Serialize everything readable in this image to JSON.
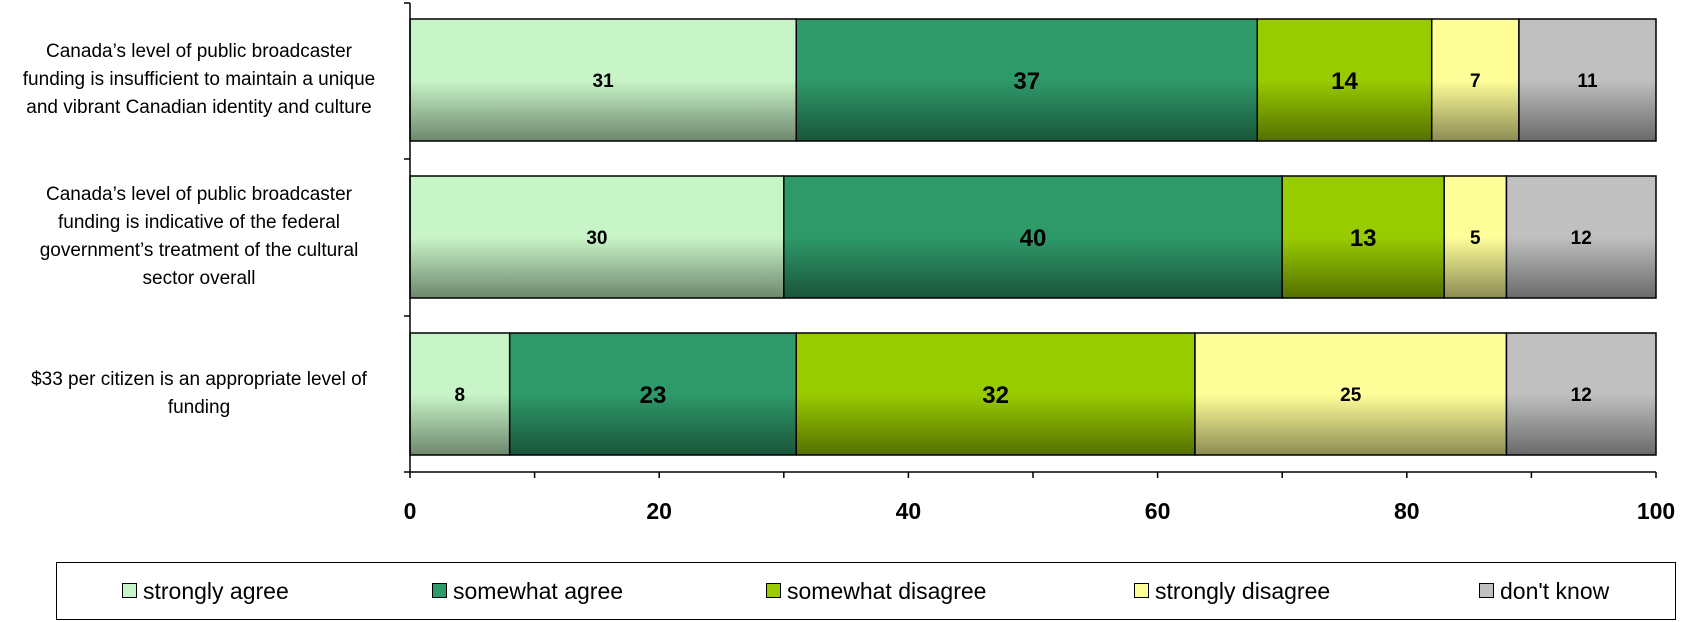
{
  "chart_data": {
    "type": "bar",
    "orientation": "horizontal",
    "stacked": true,
    "categories": [
      "Canada’s level of public broadcaster funding is insufficient to maintain a unique and vibrant Canadian identity and culture",
      "Canada’s level of public broadcaster funding is indicative of the federal government’s treatment of the cultural sector overall",
      "$33 per citizen is an appropriate level of funding"
    ],
    "category_lines": [
      [
        "Canada’s level of public broadcaster",
        "funding is insufficient to maintain a unique",
        "and vibrant Canadian identity and culture"
      ],
      [
        "Canada’s level of public broadcaster",
        "funding is indicative of the federal",
        "government’s treatment of the cultural",
        "sector overall"
      ],
      [
        "$33 per citizen is an appropriate level of",
        "funding"
      ]
    ],
    "series": [
      {
        "name": "strongly agree",
        "values": [
          31,
          30,
          8
        ],
        "color": "#c8f5c8"
      },
      {
        "name": "somewhat agree",
        "values": [
          37,
          40,
          23
        ],
        "color": "#2e9a6a"
      },
      {
        "name": "somewhat disagree",
        "values": [
          14,
          13,
          32
        ],
        "color": "#99cc00"
      },
      {
        "name": "strongly disagree",
        "values": [
          7,
          5,
          25
        ],
        "color": "#ffff99"
      },
      {
        "name": "don't know",
        "values": [
          11,
          12,
          12
        ],
        "color": "#c0c0c0"
      }
    ],
    "xlim": [
      0,
      100
    ],
    "xticks": [
      0,
      20,
      40,
      60,
      80,
      100
    ],
    "title": "",
    "xlabel": "",
    "ylabel": "",
    "grid": false,
    "legend_position": "bottom"
  }
}
